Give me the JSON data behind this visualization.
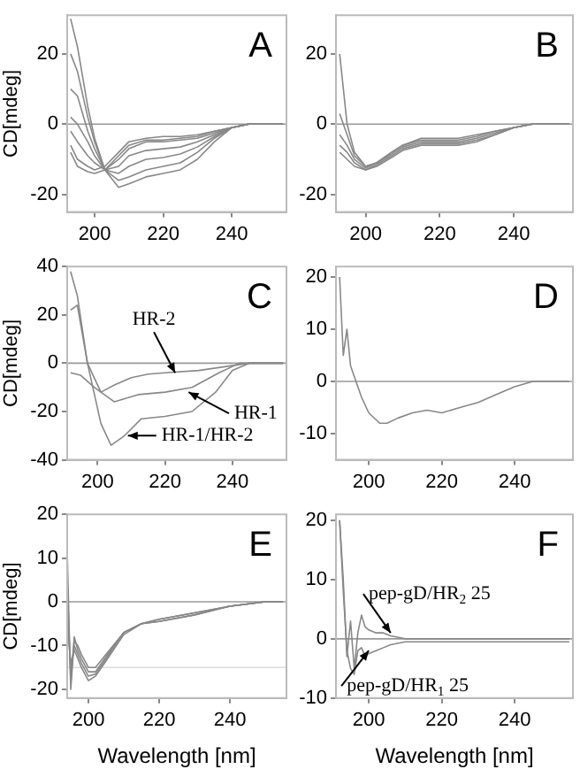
{
  "chart_data": [
    {
      "type": "line",
      "title": "A",
      "ylabel": "CD[mdeg]",
      "xlim": [
        192,
        256
      ],
      "xticks": [
        200,
        220,
        240
      ],
      "ylim": [
        -25,
        31
      ],
      "yticks": [
        -20,
        0,
        20
      ],
      "marker": "none",
      "ref_lines": [
        {
          "axis": "y",
          "value": 0,
          "color": "#999999"
        }
      ],
      "series": [
        {
          "color": "#888888",
          "x": [
            193,
            195,
            198,
            200,
            203,
            207,
            210,
            215,
            220,
            225,
            230,
            235,
            240,
            245,
            255
          ],
          "values": [
            30,
            22,
            5,
            -4,
            -13,
            -18,
            -17,
            -15,
            -14,
            -13,
            -10,
            -5,
            -1,
            0,
            0
          ]
        },
        {
          "color": "#888888",
          "x": [
            193,
            195,
            198,
            200,
            203,
            207,
            210,
            215,
            220,
            225,
            230,
            235,
            240,
            245,
            255
          ],
          "values": [
            20,
            15,
            2,
            -5,
            -13,
            -16,
            -15,
            -13,
            -12,
            -11,
            -8,
            -4,
            -1,
            0,
            0
          ]
        },
        {
          "color": "#888888",
          "x": [
            193,
            195,
            198,
            200,
            203,
            207,
            210,
            215,
            220,
            225,
            230,
            235,
            240,
            245,
            255
          ],
          "values": [
            10,
            8,
            -2,
            -7,
            -13,
            -14,
            -12,
            -10,
            -9.5,
            -8.5,
            -6.5,
            -3.5,
            -1,
            0,
            0
          ]
        },
        {
          "color": "#888888",
          "x": [
            193,
            195,
            198,
            200,
            203,
            207,
            210,
            215,
            220,
            225,
            230,
            235,
            240,
            245,
            255
          ],
          "values": [
            2,
            0,
            -5,
            -9,
            -13,
            -12,
            -9,
            -7.5,
            -7,
            -6.5,
            -5,
            -3,
            -1,
            0,
            0
          ]
        },
        {
          "color": "#888888",
          "x": [
            193,
            195,
            198,
            200,
            203,
            207,
            210,
            215,
            220,
            225,
            230,
            235,
            240,
            245,
            255
          ],
          "values": [
            -2,
            -5,
            -9,
            -11,
            -13,
            -10,
            -7,
            -5,
            -5,
            -4.5,
            -4,
            -2.5,
            -1,
            0,
            0
          ]
        },
        {
          "color": "#888888",
          "x": [
            193,
            195,
            198,
            200,
            203,
            207,
            210,
            215,
            220,
            225,
            230,
            235,
            240,
            245,
            255
          ],
          "values": [
            -6,
            -10,
            -12,
            -13,
            -12,
            -8,
            -5,
            -4,
            -3.5,
            -3.5,
            -3,
            -2,
            -1,
            0,
            0
          ]
        },
        {
          "color": "#888888",
          "x": [
            193,
            195,
            198,
            200,
            203,
            207,
            210,
            215,
            220,
            225,
            230,
            235,
            240,
            245,
            255
          ],
          "values": [
            -8,
            -12,
            -13.5,
            -14,
            -13,
            -9,
            -6,
            -4.5,
            -4.5,
            -4,
            -3.5,
            -2,
            -1,
            0,
            0
          ]
        }
      ]
    },
    {
      "type": "line",
      "title": "B",
      "xlim": [
        192,
        256
      ],
      "xticks": [
        200,
        220,
        240
      ],
      "ylim": [
        -25,
        31
      ],
      "yticks": [
        -20,
        0,
        20
      ],
      "marker": "none",
      "ref_lines": [
        {
          "axis": "y",
          "value": 0,
          "color": "#999999"
        }
      ],
      "series": [
        {
          "color": "#888888",
          "x": [
            193,
            195,
            197,
            200,
            203,
            207,
            210,
            215,
            220,
            225,
            230,
            235,
            240,
            245,
            255
          ],
          "values": [
            20,
            0,
            -8,
            -12,
            -11,
            -8,
            -6,
            -4,
            -4,
            -4,
            -3,
            -2,
            -1,
            0,
            0
          ]
        },
        {
          "color": "#888888",
          "x": [
            193,
            195,
            197,
            200,
            203,
            207,
            210,
            215,
            220,
            225,
            230,
            235,
            240,
            245,
            255
          ],
          "values": [
            3,
            -3,
            -9,
            -12,
            -11,
            -8,
            -6,
            -4.5,
            -4.5,
            -4.5,
            -3.5,
            -2,
            -1,
            0,
            0
          ]
        },
        {
          "color": "#888888",
          "x": [
            193,
            195,
            197,
            200,
            203,
            207,
            210,
            215,
            220,
            225,
            230,
            235,
            240,
            245,
            255
          ],
          "values": [
            -3,
            -6,
            -10,
            -12.5,
            -11,
            -8.5,
            -6.5,
            -5,
            -5,
            -5,
            -4,
            -2.5,
            -1,
            0,
            0
          ]
        },
        {
          "color": "#888888",
          "x": [
            193,
            195,
            197,
            200,
            203,
            207,
            210,
            215,
            220,
            225,
            230,
            235,
            240,
            245,
            255
          ],
          "values": [
            -6,
            -8,
            -11,
            -13,
            -11.5,
            -9,
            -7,
            -5.5,
            -5.5,
            -5.5,
            -4.5,
            -3,
            -1,
            0,
            0
          ]
        },
        {
          "color": "#888888",
          "x": [
            193,
            195,
            197,
            200,
            203,
            207,
            210,
            215,
            220,
            225,
            230,
            235,
            240,
            245,
            255
          ],
          "values": [
            -8,
            -10,
            -12,
            -13,
            -12,
            -9.5,
            -7.5,
            -6,
            -6,
            -6,
            -5,
            -3,
            -1,
            0,
            0
          ]
        }
      ]
    },
    {
      "type": "line",
      "title": "C",
      "ylabel": "CD[mdeg]",
      "xlim": [
        191,
        256
      ],
      "xticks": [
        200,
        220,
        240
      ],
      "ylim": [
        -40,
        40
      ],
      "yticks": [
        -40,
        -20,
        0,
        20,
        40
      ],
      "marker": "none",
      "ref_lines": [
        {
          "axis": "y",
          "value": 0,
          "color": "#999999"
        }
      ],
      "annotations": [
        {
          "text": "HR-2",
          "x": 223,
          "y": -4
        },
        {
          "text": "HR-1",
          "x": 227,
          "y": -12
        },
        {
          "text": "HR-1/HR-2",
          "x": 209,
          "y": -30
        }
      ],
      "series": [
        {
          "color": "#888888",
          "x": [
            192,
            194,
            197,
            201,
            205,
            210,
            215,
            220,
            230,
            240,
            245,
            255
          ],
          "values": [
            22,
            24,
            0,
            -12,
            -9,
            -6,
            -4.5,
            -4,
            -3,
            -1,
            0,
            0
          ]
        },
        {
          "color": "#888888",
          "x": [
            192,
            195,
            199,
            205,
            212,
            220,
            228,
            236,
            242,
            255
          ],
          "values": [
            -4,
            -5,
            -10,
            -16,
            -13,
            -12,
            -10,
            -4,
            0,
            0
          ]
        },
        {
          "color": "#888888",
          "x": [
            192,
            194,
            197,
            201,
            204,
            208,
            213,
            220,
            228,
            235,
            240,
            245,
            255
          ],
          "values": [
            38,
            28,
            0,
            -25,
            -34,
            -30,
            -23,
            -22,
            -20,
            -12,
            -3,
            0,
            0
          ]
        }
      ]
    },
    {
      "type": "line",
      "title": "D",
      "xlim": [
        191,
        256
      ],
      "xticks": [
        200,
        220,
        240
      ],
      "ylim": [
        -15,
        22
      ],
      "yticks": [
        -10,
        0,
        10,
        20
      ],
      "marker": "none",
      "ref_lines": [
        {
          "axis": "y",
          "value": 0,
          "color": "#999999"
        }
      ],
      "series": [
        {
          "color": "#888888",
          "x": [
            192,
            193,
            194,
            195,
            196,
            197,
            198,
            200,
            203,
            205,
            208,
            212,
            216,
            220,
            225,
            230,
            235,
            240,
            245,
            250,
            255
          ],
          "values": [
            20,
            5,
            10,
            3,
            1,
            -1,
            -3,
            -6,
            -8,
            -8,
            -7,
            -6,
            -5.5,
            -6,
            -5,
            -4,
            -2.5,
            -1,
            0,
            0,
            0
          ]
        }
      ]
    },
    {
      "type": "line",
      "title": "E",
      "ylabel": "CD[mdeg]",
      "xlabel": "Wavelength [nm]",
      "xlim": [
        194,
        256
      ],
      "xticks": [
        200,
        220,
        240
      ],
      "ylim": [
        -22,
        20
      ],
      "yticks": [
        -20,
        -10,
        0,
        10,
        20
      ],
      "marker": "none",
      "ref_lines": [
        {
          "axis": "y",
          "value": 0,
          "color": "#999999"
        },
        {
          "axis": "y",
          "value": -15,
          "color": "#dddddd"
        }
      ],
      "series": [
        {
          "color": "#888888",
          "x": [
            194,
            195,
            196,
            197,
            198,
            200,
            202,
            205,
            210,
            215,
            220,
            230,
            240,
            250,
            255
          ],
          "values": [
            12,
            -20,
            -9,
            -10,
            -12,
            -15,
            -15,
            -12,
            -7,
            -5,
            -4,
            -2.5,
            -1,
            0,
            0
          ]
        },
        {
          "color": "#888888",
          "x": [
            194,
            195,
            196,
            197,
            198,
            200,
            202,
            205,
            210,
            215,
            220,
            230,
            240,
            250,
            255
          ],
          "values": [
            5,
            -18,
            -8,
            -11,
            -13,
            -16,
            -16,
            -12.5,
            -7,
            -5,
            -4,
            -2.5,
            -1,
            0,
            0
          ]
        },
        {
          "color": "#888888",
          "x": [
            194,
            195,
            196,
            197,
            198,
            200,
            202,
            205,
            210,
            215,
            220,
            230,
            240,
            250,
            255
          ],
          "values": [
            0,
            -16,
            -10,
            -12,
            -14,
            -17,
            -16.5,
            -13,
            -7,
            -5,
            -4.5,
            -3,
            -1,
            0,
            0
          ]
        },
        {
          "color": "#888888",
          "x": [
            194,
            195,
            196,
            197,
            198,
            200,
            202,
            205,
            210,
            215,
            220,
            230,
            240,
            250,
            255
          ],
          "values": [
            -5,
            -14,
            -11,
            -13,
            -15,
            -18,
            -17,
            -13.5,
            -7.5,
            -5,
            -4.5,
            -3,
            -1,
            0,
            0
          ]
        }
      ]
    },
    {
      "type": "line",
      "title": "F",
      "xlabel": "Wavelength [nm]",
      "xlim": [
        191,
        256
      ],
      "xticks": [
        200,
        220,
        240
      ],
      "ylim": [
        -10,
        21
      ],
      "yticks": [
        -10,
        0,
        10,
        20
      ],
      "marker": "none",
      "ref_lines": [
        {
          "axis": "y",
          "value": 0,
          "color": "#999999"
        }
      ],
      "annotations": [
        {
          "text": "pep-gD/HR$_{2}$ 25",
          "x": 206,
          "y": 1
        },
        {
          "text": "pep-gD/HR$_{1}$ 25",
          "x": 200,
          "y": -2
        }
      ],
      "series": [
        {
          "color": "#888888",
          "x": [
            192,
            193,
            194,
            195,
            196,
            197,
            198,
            199,
            200,
            202,
            204,
            206,
            210,
            220,
            230,
            240,
            255
          ],
          "values": [
            20,
            10,
            -3,
            3,
            -5,
            1,
            4,
            2,
            1.5,
            1,
            1,
            0.5,
            0,
            0,
            0,
            0,
            0
          ]
        },
        {
          "color": "#888888",
          "x": [
            192,
            193,
            194,
            195,
            196,
            197,
            198,
            199,
            200,
            202,
            204,
            206,
            210,
            220,
            230,
            240,
            255
          ],
          "values": [
            20,
            8,
            -2,
            -5,
            -6,
            -2,
            -1.5,
            -3,
            -2.5,
            -2,
            -1.5,
            -1,
            -0.5,
            -0.5,
            -0.5,
            -0.5,
            -0.5
          ]
        }
      ]
    }
  ]
}
